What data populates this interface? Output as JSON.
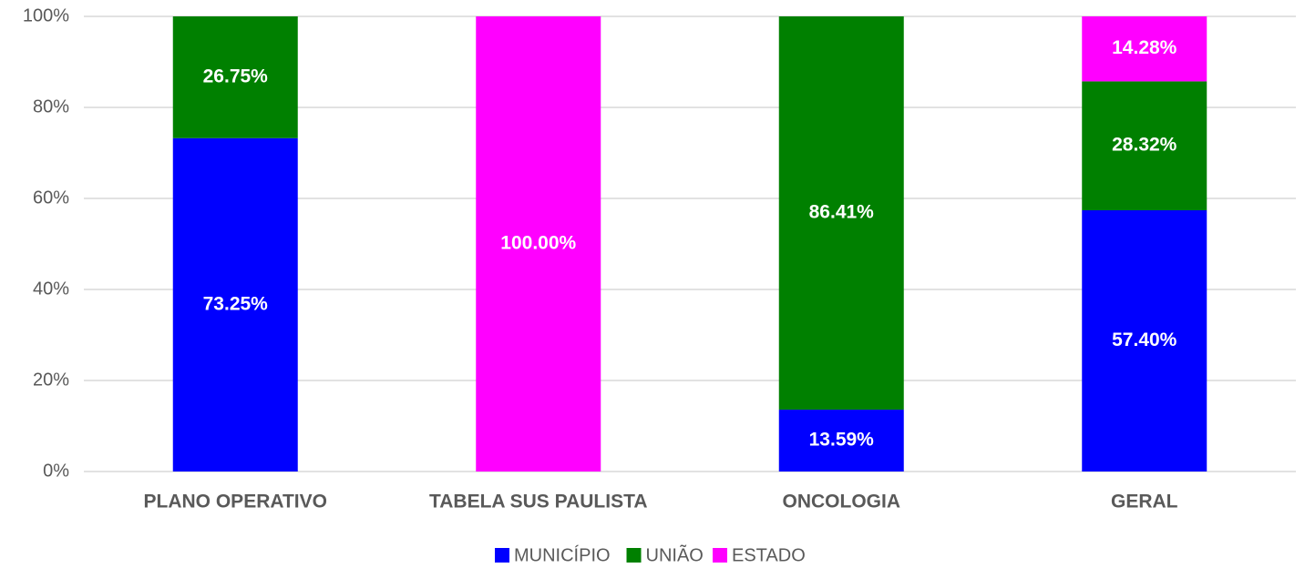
{
  "chart_data": {
    "type": "stacked_bar",
    "categories": [
      "PLANO OPERATIVO",
      "TABELA SUS PAULISTA",
      "ONCOLOGIA",
      "GERAL"
    ],
    "series": [
      {
        "name": "MUNICÍPIO",
        "color": "#0000ff",
        "values": [
          73.25,
          null,
          13.59,
          57.4
        ],
        "value_labels": [
          "73.25%",
          null,
          "13.59%",
          "57.40%"
        ]
      },
      {
        "name": "UNIÃO",
        "color": "#008000",
        "values": [
          26.75,
          null,
          86.41,
          28.32
        ],
        "value_labels": [
          "26.75%",
          null,
          "86.41%",
          "28.32%"
        ]
      },
      {
        "name": "ESTADO",
        "color": "#ff00ff",
        "values": [
          null,
          100,
          null,
          14.28
        ],
        "value_labels": [
          null,
          "100.00%",
          null,
          "14.28%"
        ]
      }
    ],
    "ylim": [
      0,
      100
    ],
    "yticks": [
      {
        "value": 0,
        "label": "0%"
      },
      {
        "value": 20,
        "label": "20%"
      },
      {
        "value": 40,
        "label": "40%"
      },
      {
        "value": 60,
        "label": "60%"
      },
      {
        "value": 80,
        "label": "80%"
      },
      {
        "value": 100,
        "label": "100%"
      }
    ],
    "grid": true,
    "legend": "bottom"
  }
}
